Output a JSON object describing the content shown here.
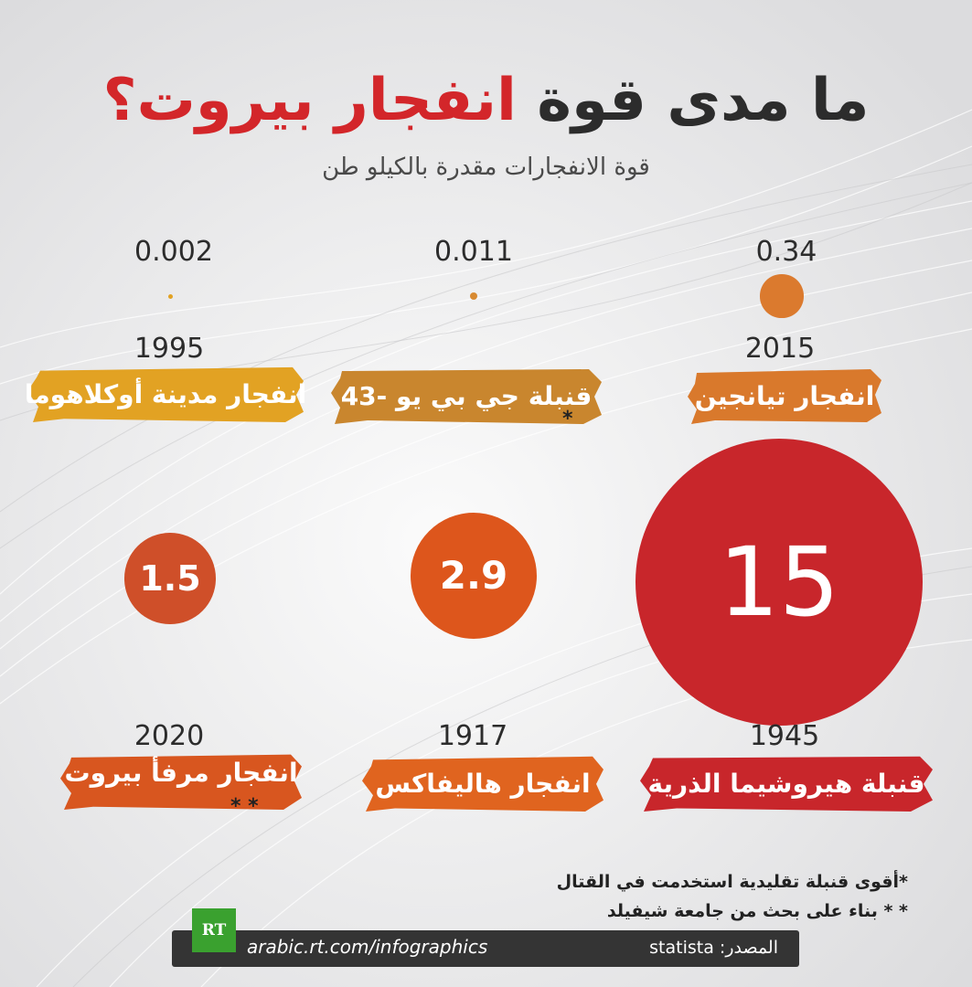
{
  "title_part1": "ما مدى قوة",
  "title_part2": "انفجار بيروت؟",
  "subtitle": "قوة الانفجارات مقدرة بالكيلو طن",
  "colors": {
    "red": "#c8262b",
    "orange": "#dd5a1c",
    "orange_dark": "#d0502a",
    "amber": "#e2a223",
    "brown": "#d28a2a",
    "tianjin": "#d9792c"
  },
  "chart_data": {
    "type": "bubble",
    "unit": "kiloton",
    "title": "ما مدى قوة انفجار بيروت؟",
    "subtitle": "قوة الانفجارات مقدرة بالكيلو طن",
    "items": [
      {
        "label": "انفجار تيانجين",
        "year": "2015",
        "value": 0.34,
        "value_text": "0.34",
        "note": ""
      },
      {
        "label": "قنبلة جي بي يو -43",
        "year": "",
        "value": 0.011,
        "value_text": "0.011",
        "note": "*"
      },
      {
        "label": "انفجار مدينة أوكلاهوما",
        "year": "1995",
        "value": 0.002,
        "value_text": "0.002",
        "note": ""
      },
      {
        "label": "قنبلة هيروشيما الذرية",
        "year": "1945",
        "value": 15,
        "value_text": "15",
        "note": ""
      },
      {
        "label": "انفجار هاليفاكس",
        "year": "1917",
        "value": 2.9,
        "value_text": "2.9",
        "note": ""
      },
      {
        "label": "انفجار مرفأ بيروت",
        "year": "2020",
        "value": 1.5,
        "value_text": "1.5",
        "note": "* *"
      }
    ]
  },
  "notes": [
    "*أقوى قنبلة تقليدية استخدمت في القتال",
    "* * بناء على بحث من جامعة شيفيلد"
  ],
  "footer": {
    "logo": "RT",
    "url": "arabic.rt.com/infographics",
    "source": "المصدر: statista"
  }
}
